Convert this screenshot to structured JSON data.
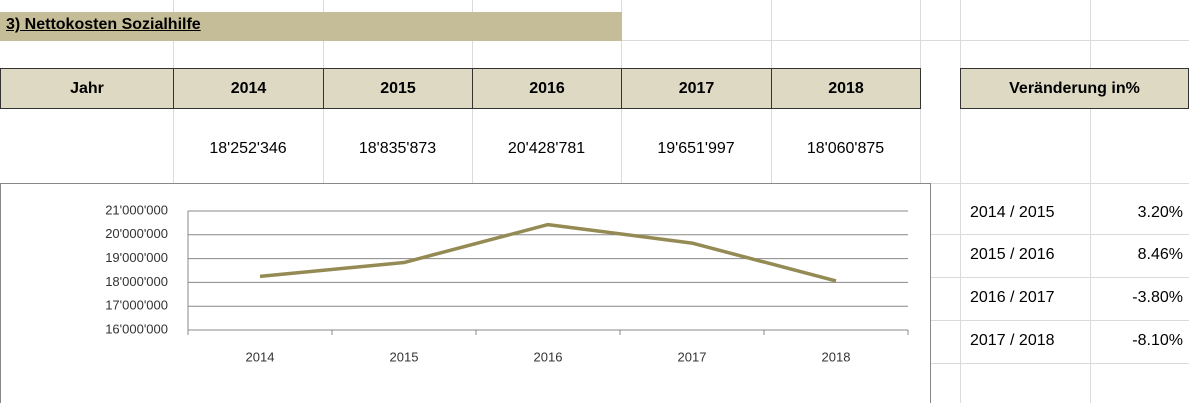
{
  "header": {
    "title": "3)  Nettokosten Sozialhilfe"
  },
  "table": {
    "header": [
      "Jahr",
      "2014",
      "2015",
      "2016",
      "2017",
      "2018"
    ],
    "values": [
      "18'252'346",
      "18'835'873",
      "20'428'781",
      "19'651'997",
      "18'060'875"
    ]
  },
  "changes": {
    "title": "Veränderung in%",
    "rows": [
      [
        "2014 / 2015",
        "3.20%"
      ],
      [
        "2015 / 2016",
        "8.46%"
      ],
      [
        "2016 / 2017",
        "-3.80%"
      ],
      [
        "2017 / 2018",
        "-8.10%"
      ]
    ]
  },
  "chart_data": {
    "type": "line",
    "categories": [
      "2014",
      "2015",
      "2016",
      "2017",
      "2018"
    ],
    "values": [
      18252346,
      18835873,
      20428781,
      19651997,
      18060875
    ],
    "color": "#948a54",
    "ylim": [
      16000000,
      21000000
    ],
    "yticks": [
      {
        "value": 16000000,
        "label": "16'000'000"
      },
      {
        "value": 17000000,
        "label": "17'000'000"
      },
      {
        "value": 18000000,
        "label": "18'000'000"
      },
      {
        "value": 19000000,
        "label": "19'000'000"
      },
      {
        "value": 20000000,
        "label": "20'000'000"
      },
      {
        "value": 21000000,
        "label": "21'000'000"
      }
    ],
    "grid": true
  }
}
